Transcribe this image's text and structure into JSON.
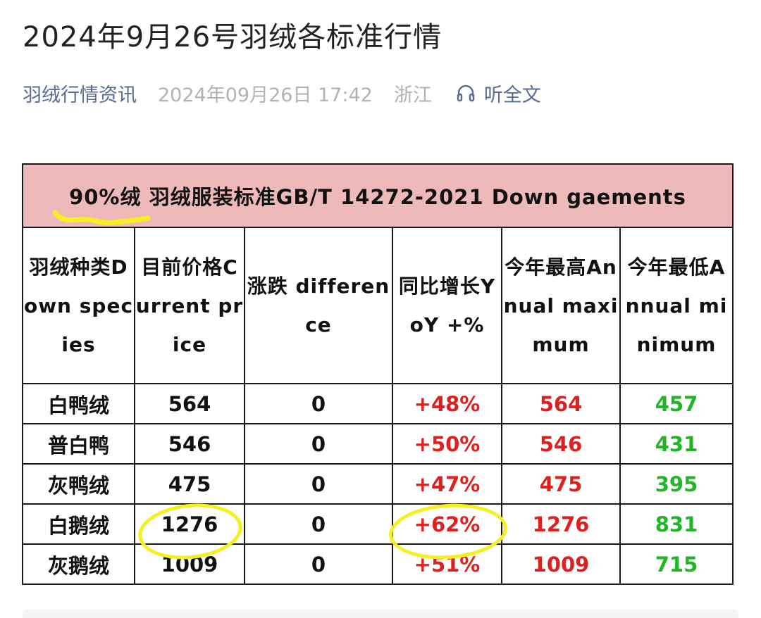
{
  "article": {
    "title": "2024年9月26号羽绒各标准行情",
    "source": "羽绒行情资讯",
    "datetime": "2024年09月26日 17:42",
    "region": "浙江",
    "listen_label": "听全文",
    "listen_icon": "headphones-icon"
  },
  "table": {
    "banner": {
      "highlight": "90%绒",
      "text": "羽绒服装标准GB/T 14272-2021 Down gaements"
    },
    "headers": [
      "羽绒种类Down species",
      "目前价格Current price",
      "涨跌 difference",
      "同比增长YoY +%",
      "今年最高Annual maximum",
      "今年最低Annual minimum"
    ],
    "rows": [
      {
        "type": "白鸭绒",
        "price": "564",
        "diff": "0",
        "yoy": "+48%",
        "max": "564",
        "min": "457"
      },
      {
        "type": "普白鸭",
        "price": "546",
        "diff": "0",
        "yoy": "+50%",
        "max": "546",
        "min": "431"
      },
      {
        "type": "灰鸭绒",
        "price": "475",
        "diff": "0",
        "yoy": "+47%",
        "max": "475",
        "min": "395"
      },
      {
        "type": "白鹅绒",
        "price": "1276",
        "diff": "0",
        "yoy": "+62%",
        "max": "1276",
        "min": "831"
      },
      {
        "type": "灰鹅绒",
        "price": "1009",
        "diff": "0",
        "yoy": "+51%",
        "max": "1009",
        "min": "715"
      }
    ]
  },
  "colors": {
    "banner_bg": "#eeb9b9",
    "up_red": "#e0201f",
    "low_green": "#22b527",
    "highlight_marker": "#f5f01e",
    "link_blue": "#576b95"
  }
}
